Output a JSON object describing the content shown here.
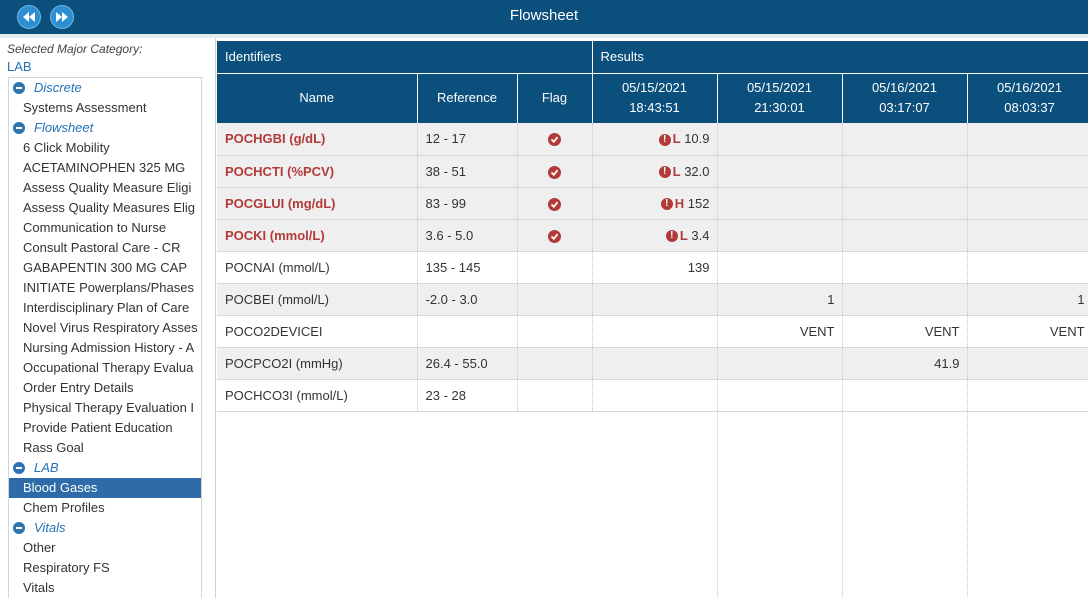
{
  "header": {
    "title": "Flowsheet"
  },
  "sidebar": {
    "category_label": "Selected Major Category:",
    "category_value": "LAB",
    "tree": [
      {
        "type": "group",
        "label": "Discrete"
      },
      {
        "type": "item",
        "label": "Systems Assessment"
      },
      {
        "type": "group",
        "label": "Flowsheet"
      },
      {
        "type": "item",
        "label": "6 Click Mobility"
      },
      {
        "type": "item",
        "label": "ACETAMINOPHEN 325 MG"
      },
      {
        "type": "item",
        "label": "Assess Quality Measure Eligi"
      },
      {
        "type": "item",
        "label": "Assess Quality Measures Elig"
      },
      {
        "type": "item",
        "label": "Communication to Nurse"
      },
      {
        "type": "item",
        "label": "Consult Pastoral Care - CR"
      },
      {
        "type": "item",
        "label": "GABAPENTIN 300 MG CAP"
      },
      {
        "type": "item",
        "label": "INITIATE Powerplans/Phases"
      },
      {
        "type": "item",
        "label": "Interdisciplinary Plan of Care"
      },
      {
        "type": "item",
        "label": "Novel Virus Respiratory Asses"
      },
      {
        "type": "item",
        "label": "Nursing Admission History - A"
      },
      {
        "type": "item",
        "label": "Occupational Therapy Evalua"
      },
      {
        "type": "item",
        "label": "Order Entry Details"
      },
      {
        "type": "item",
        "label": "Physical Therapy Evaluation I"
      },
      {
        "type": "item",
        "label": "Provide Patient Education"
      },
      {
        "type": "item",
        "label": "Rass Goal"
      },
      {
        "type": "group",
        "label": "LAB"
      },
      {
        "type": "item",
        "label": "Blood Gases",
        "selected": true
      },
      {
        "type": "item",
        "label": "Chem Profiles"
      },
      {
        "type": "group",
        "label": "Vitals"
      },
      {
        "type": "item",
        "label": "Other"
      },
      {
        "type": "item",
        "label": "Respiratory FS"
      },
      {
        "type": "item",
        "label": "Vitals"
      }
    ]
  },
  "grid": {
    "group_headers": {
      "identifiers": "Identifiers",
      "results": "Results"
    },
    "columns": {
      "name": "Name",
      "reference": "Reference",
      "flag": "Flag"
    },
    "result_columns": [
      {
        "date": "05/15/2021",
        "time": "18:43:51"
      },
      {
        "date": "05/15/2021",
        "time": "21:30:01"
      },
      {
        "date": "05/16/2021",
        "time": "03:17:07"
      },
      {
        "date": "05/16/2021",
        "time": "08:03:37"
      }
    ],
    "rows": [
      {
        "name": "POCHGBI (g/dL)",
        "reference": "12 - 17",
        "flagged": true,
        "results": [
          {
            "value": "10.9",
            "abn": "L"
          },
          null,
          null,
          null
        ]
      },
      {
        "name": "POCHCTI (%PCV)",
        "reference": "38 - 51",
        "flagged": true,
        "results": [
          {
            "value": "32.0",
            "abn": "L"
          },
          null,
          null,
          null
        ]
      },
      {
        "name": "POCGLUI (mg/dL)",
        "reference": "83 - 99",
        "flagged": true,
        "results": [
          {
            "value": "152",
            "abn": "H"
          },
          null,
          null,
          null
        ]
      },
      {
        "name": "POCKI (mmol/L)",
        "reference": "3.6 - 5.0",
        "flagged": true,
        "results": [
          {
            "value": "3.4",
            "abn": "L"
          },
          null,
          null,
          null
        ]
      },
      {
        "name": "POCNAI (mmol/L)",
        "reference": "135 - 145",
        "flagged": false,
        "results": [
          {
            "value": "139"
          },
          null,
          null,
          null
        ]
      },
      {
        "name": "POCBEI (mmol/L)",
        "reference": "-2.0 - 3.0",
        "flagged": false,
        "results": [
          null,
          {
            "value": "1"
          },
          null,
          {
            "value": "1"
          }
        ]
      },
      {
        "name": "POCO2DEVICEI",
        "reference": "",
        "flagged": false,
        "results": [
          null,
          {
            "value": "VENT"
          },
          {
            "value": "VENT"
          },
          {
            "value": "VENT"
          }
        ]
      },
      {
        "name": "POCPCO2I (mmHg)",
        "reference": "26.4 - 55.0",
        "flagged": false,
        "results": [
          null,
          null,
          {
            "value": "41.9"
          },
          null
        ]
      },
      {
        "name": "POCHCO3I (mmol/L)",
        "reference": "23 - 28",
        "flagged": false,
        "results": [
          null,
          null,
          null,
          null
        ]
      }
    ]
  }
}
